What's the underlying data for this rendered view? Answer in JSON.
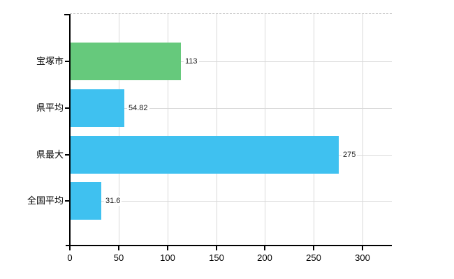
{
  "chart_data": {
    "type": "bar",
    "orientation": "horizontal",
    "title": "",
    "xlabel": "",
    "ylabel": "",
    "categories": [
      "宝塚市",
      "県平均",
      "県最大",
      "全国平均"
    ],
    "values": [
      113,
      54.82,
      275,
      31.6
    ],
    "value_labels": [
      "113",
      "54.82",
      "275",
      "31.6"
    ],
    "bar_colors": [
      "#66c97c",
      "#3fc1f0",
      "#3fc1f0",
      "#3fc1f0"
    ],
    "x_ticks": [
      0,
      50,
      100,
      150,
      200,
      250,
      300
    ],
    "x_tick_labels": [
      "0",
      "50",
      "100",
      "150",
      "200",
      "250",
      "300"
    ],
    "xlim": [
      0,
      330
    ],
    "grid": true,
    "legend": false,
    "colors": {
      "grid": "#d9d9d9",
      "top_border": "#c8c8c8",
      "axis": "#000000",
      "text": "#000000",
      "value_text": "#1a1a1a",
      "background": "#ffffff"
    }
  }
}
